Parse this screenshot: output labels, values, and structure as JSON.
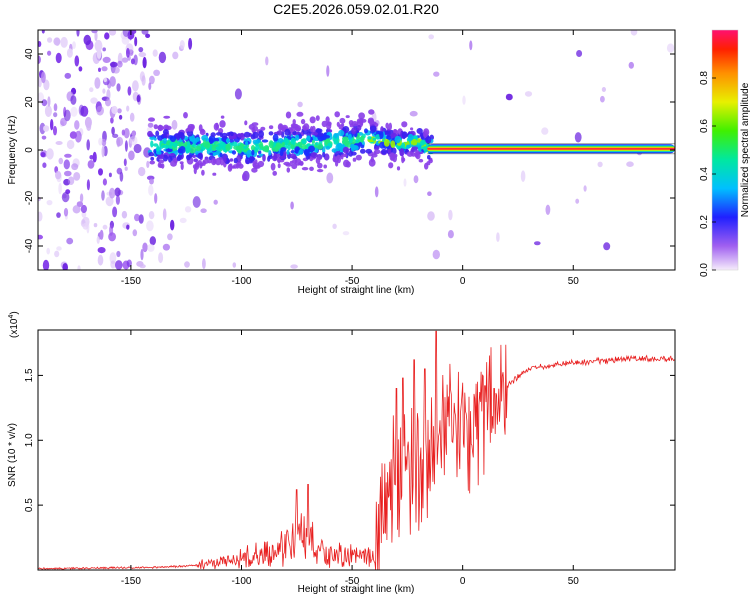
{
  "title": "C2E5.2026.059.02.01.R20",
  "chart_data": [
    {
      "type": "heatmap",
      "name": "spectrogram",
      "xlabel": "Height of straight line (km)",
      "ylabel": "Frequency (Hz)",
      "xlim": [
        -192,
        96
      ],
      "ylim": [
        -50,
        50
      ],
      "xticks": [
        -150,
        -100,
        -50,
        0,
        50
      ],
      "yticks": [
        -40,
        -20,
        0,
        20,
        40
      ],
      "colorbar": {
        "label": "Normalized spectral amplitude",
        "range": [
          0,
          1
        ],
        "ticks": [
          "0.0",
          "0.2",
          "0.4",
          "0.6",
          "0.8"
        ]
      },
      "signal_track": [
        {
          "x": -140,
          "f": 2
        },
        {
          "x": -100,
          "f": 1
        },
        {
          "x": -60,
          "f": 3
        },
        {
          "x": -40,
          "f": 5
        },
        {
          "x": -30,
          "f": 2
        },
        {
          "x": -20,
          "f": 4
        },
        {
          "x": -16,
          "f": 1
        },
        {
          "x": 95,
          "f": 0.5
        }
      ]
    },
    {
      "type": "line",
      "name": "snr",
      "xlabel": "Height of straight line (km)",
      "ylabel": "SNR (10 * v/v)",
      "scale_label": "(x10",
      "scale_exp": "4",
      "xlim": [
        -192,
        96
      ],
      "ylim": [
        0,
        1.85
      ],
      "xticks": [
        -150,
        -100,
        -50,
        0,
        50
      ],
      "yticks": [
        "0.5",
        "1.0",
        "1.5"
      ],
      "color": "#e82020",
      "envelope": [
        {
          "x": -192,
          "y": 0.01
        },
        {
          "x": -140,
          "y": 0.02
        },
        {
          "x": -125,
          "y": 0.03
        },
        {
          "x": -110,
          "y": 0.06
        },
        {
          "x": -95,
          "y": 0.11
        },
        {
          "x": -85,
          "y": 0.14
        },
        {
          "x": -75,
          "y": 0.25
        },
        {
          "x": -68,
          "y": 0.2
        },
        {
          "x": -60,
          "y": 0.12
        },
        {
          "x": -45,
          "y": 0.1
        },
        {
          "x": -38,
          "y": 0.2
        },
        {
          "x": -32,
          "y": 0.65
        },
        {
          "x": -25,
          "y": 0.78
        },
        {
          "x": -15,
          "y": 0.9
        },
        {
          "x": -10,
          "y": 1.0
        },
        {
          "x": -5,
          "y": 1.07
        },
        {
          "x": 0,
          "y": 1.1
        },
        {
          "x": 10,
          "y": 1.22
        },
        {
          "x": 20,
          "y": 1.42
        },
        {
          "x": 30,
          "y": 1.55
        },
        {
          "x": 45,
          "y": 1.59
        },
        {
          "x": 60,
          "y": 1.61
        },
        {
          "x": 80,
          "y": 1.63
        },
        {
          "x": 96,
          "y": 1.63
        }
      ],
      "spikes": [
        {
          "x": -75,
          "y": 0.62
        },
        {
          "x": -70,
          "y": 0.66
        },
        {
          "x": -30,
          "y": 1.4
        },
        {
          "x": -27,
          "y": 1.48
        },
        {
          "x": -22,
          "y": 1.62
        },
        {
          "x": -17,
          "y": 1.55
        },
        {
          "x": -12,
          "y": 1.84
        },
        {
          "x": 10,
          "y": 1.42
        }
      ]
    }
  ]
}
